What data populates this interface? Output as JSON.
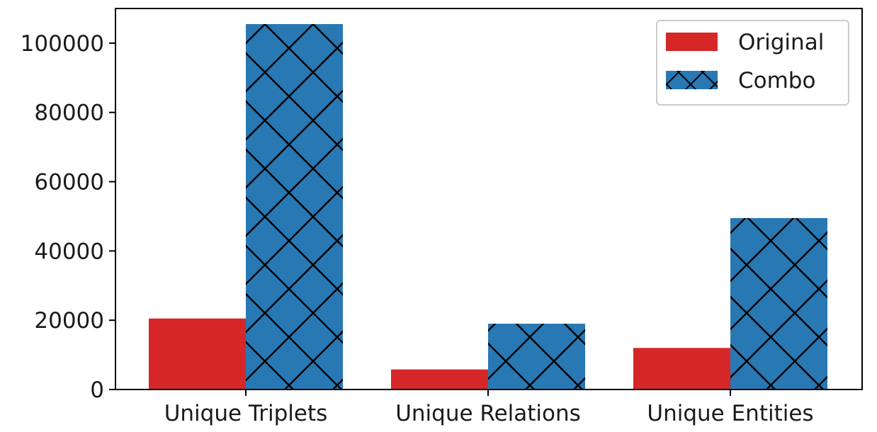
{
  "chart_data": {
    "type": "bar",
    "categories": [
      "Unique Triplets",
      "Unique Relations",
      "Unique Entities"
    ],
    "series": [
      {
        "name": "Original",
        "values": [
          20500,
          5800,
          12000
        ],
        "color": "#d62728",
        "pattern": "solid"
      },
      {
        "name": "Combo",
        "values": [
          105500,
          19000,
          49500
        ],
        "color": "#2878b4",
        "pattern": "crosshatch-x"
      }
    ],
    "title": "",
    "xlabel": "",
    "ylabel": "",
    "ylim": [
      0,
      110000
    ],
    "yticks": [
      0,
      20000,
      40000,
      60000,
      80000,
      100000
    ],
    "grid": false,
    "legend": "top-right"
  }
}
